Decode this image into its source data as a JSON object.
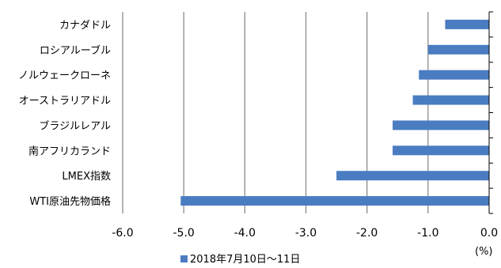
{
  "chart_data": {
    "type": "bar",
    "orientation": "horizontal",
    "categories": [
      "カナダドル",
      "ロシアルーブル",
      "ノルウェークローネ",
      "オーストラリアドル",
      "ブラジルレアル",
      "南アフリカランド",
      "LMEX指数",
      "WTI原油先物価格"
    ],
    "series": [
      {
        "name": "2018年7月10日〜11日",
        "values": [
          -0.72,
          -1.0,
          -1.15,
          -1.25,
          -1.58,
          -1.58,
          -2.5,
          -5.05
        ],
        "color": "#4a7cc1"
      }
    ],
    "xlim": [
      -6.0,
      0.0
    ],
    "xticks": [
      "-6.0",
      "-5.0",
      "-4.0",
      "-3.0",
      "-2.0",
      "-1.0",
      "0.0"
    ],
    "xtick_values": [
      -6.0,
      -5.0,
      -4.0,
      -3.0,
      -2.0,
      -1.0,
      0.0
    ],
    "unit": "(%)",
    "grid": true,
    "legend_position": "bottom"
  }
}
